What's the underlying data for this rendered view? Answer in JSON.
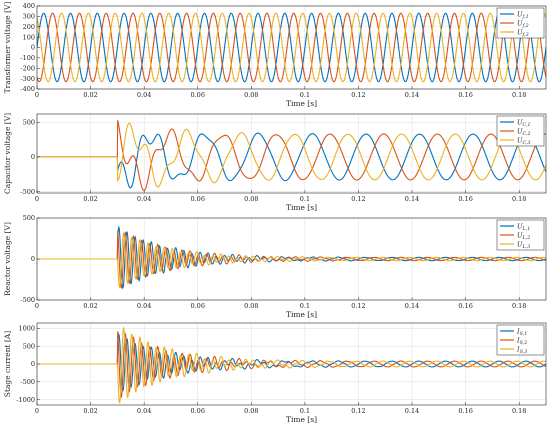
{
  "chart_data": [
    {
      "type": "line",
      "ylabel": "Transformer voltage [V]",
      "xlabel": "Time [s]",
      "xlim": [
        0,
        0.19
      ],
      "ylim": [
        -400,
        400
      ],
      "xticks": [
        "0",
        "0.02",
        "0.04",
        "0.06",
        "0.08",
        "0.1",
        "0.12",
        "0.14",
        "0.16",
        "0.18"
      ],
      "xtick_values": [
        0,
        0.02,
        0.04,
        0.06,
        0.08,
        0.1,
        0.12,
        0.14,
        0.16,
        0.18
      ],
      "yticks": [
        "-400",
        "-300",
        "-200",
        "-100",
        "0",
        "100",
        "200",
        "300",
        "400"
      ],
      "ytick_values": [
        -400,
        -300,
        -200,
        -100,
        0,
        100,
        200,
        300,
        400
      ],
      "grid": true,
      "legend_position": "top-right",
      "series": [
        {
          "name_main": "U",
          "name_sub": "f,1",
          "color": "#0072BD",
          "amplitude": 330,
          "phase_deg": 0,
          "freq_hz": 100
        },
        {
          "name_main": "U",
          "name_sub": "f,2",
          "color": "#D95319",
          "amplitude": 330,
          "phase_deg": -120,
          "freq_hz": 100
        },
        {
          "name_main": "U",
          "name_sub": "f,3",
          "color": "#EDB120",
          "amplitude": 330,
          "phase_deg": 120,
          "freq_hz": 100
        }
      ],
      "event_time_s": 0.03
    },
    {
      "type": "line",
      "ylabel": "Capacitor voltage [V]",
      "xlabel": "Time [s]",
      "xlim": [
        0,
        0.19
      ],
      "ylim": [
        -520,
        620
      ],
      "xticks": [
        "0",
        "0.02",
        "0.04",
        "0.06",
        "0.08",
        "0.1",
        "0.12",
        "0.14",
        "0.16",
        "0.18"
      ],
      "xtick_values": [
        0,
        0.02,
        0.04,
        0.06,
        0.08,
        0.1,
        0.12,
        0.14,
        0.16,
        0.18
      ],
      "yticks": [
        "-500",
        "0",
        "500"
      ],
      "ytick_values": [
        -500,
        0,
        500
      ],
      "grid": true,
      "legend_position": "top-right",
      "series": [
        {
          "name_main": "U",
          "name_sub": "C,1",
          "color": "#0072BD",
          "amplitude": 330,
          "phase_deg": 40,
          "freq_hz": 50
        },
        {
          "name_main": "U",
          "name_sub": "C,2",
          "color": "#D95319",
          "amplitude": 330,
          "phase_deg": -80,
          "freq_hz": 50
        },
        {
          "name_main": "U",
          "name_sub": "C,3",
          "color": "#EDB120",
          "amplitude": 330,
          "phase_deg": 160,
          "freq_hz": 50
        }
      ],
      "event_time_s": 0.03
    },
    {
      "type": "line",
      "ylabel": "Reactor voltage [V]",
      "xlabel": "Time [s]",
      "xlim": [
        0,
        0.19
      ],
      "ylim": [
        -500,
        500
      ],
      "xticks": [
        "0",
        "0.02",
        "0.04",
        "0.06",
        "0.08",
        "0.1",
        "0.12",
        "0.14",
        "0.16",
        "0.18"
      ],
      "xtick_values": [
        0,
        0.02,
        0.04,
        0.06,
        0.08,
        0.1,
        0.12,
        0.14,
        0.16,
        0.18
      ],
      "yticks": [
        "-500",
        "0",
        "500"
      ],
      "ytick_values": [
        -500,
        0,
        500
      ],
      "grid": true,
      "legend_position": "top-right",
      "series": [
        {
          "name_main": "U",
          "name_sub": "L,1",
          "color": "#0072BD",
          "amplitude": 20,
          "phase_deg": 0,
          "freq_hz": 100,
          "transient_peak": 400,
          "transient_freq_hz": 330
        },
        {
          "name_main": "U",
          "name_sub": "L,2",
          "color": "#D95319",
          "amplitude": 20,
          "phase_deg": -120,
          "freq_hz": 100,
          "transient_peak": 380,
          "transient_freq_hz": 330
        },
        {
          "name_main": "U",
          "name_sub": "L,3",
          "color": "#EDB120",
          "amplitude": 20,
          "phase_deg": 120,
          "freq_hz": 100,
          "transient_peak": 360,
          "transient_freq_hz": 330
        }
      ],
      "event_time_s": 0.03
    },
    {
      "type": "line",
      "ylabel": "Stage current [A]",
      "xlabel": "Time [s]",
      "xlim": [
        0,
        0.19
      ],
      "ylim": [
        -1150,
        1150
      ],
      "xticks": [
        "0",
        "0.02",
        "0.04",
        "0.06",
        "0.08",
        "0.1",
        "0.12",
        "0.14",
        "0.16",
        "0.18"
      ],
      "xtick_values": [
        0,
        0.02,
        0.04,
        0.06,
        0.08,
        0.1,
        0.12,
        0.14,
        0.16,
        0.18
      ],
      "yticks": [
        "-1000",
        "-500",
        "0",
        "500",
        "1000"
      ],
      "ytick_values": [
        -1000,
        -500,
        0,
        500,
        1000
      ],
      "grid": true,
      "legend_position": "top-right",
      "series": [
        {
          "name_main": "I",
          "name_sub": "S,1",
          "color": "#0072BD",
          "amplitude": 80,
          "phase_deg": 0,
          "freq_hz": 100,
          "transient_peak": 850,
          "transient_freq_hz": 330
        },
        {
          "name_main": "I",
          "name_sub": "S,2",
          "color": "#D95319",
          "amplitude": 80,
          "phase_deg": -120,
          "freq_hz": 100,
          "transient_peak": 1000,
          "transient_freq_hz": 330
        },
        {
          "name_main": "I",
          "name_sub": "S,3",
          "color": "#EDB120",
          "amplitude": 80,
          "phase_deg": 120,
          "freq_hz": 100,
          "transient_peak": 1150,
          "transient_freq_hz": 330
        }
      ],
      "event_time_s": 0.03
    }
  ]
}
